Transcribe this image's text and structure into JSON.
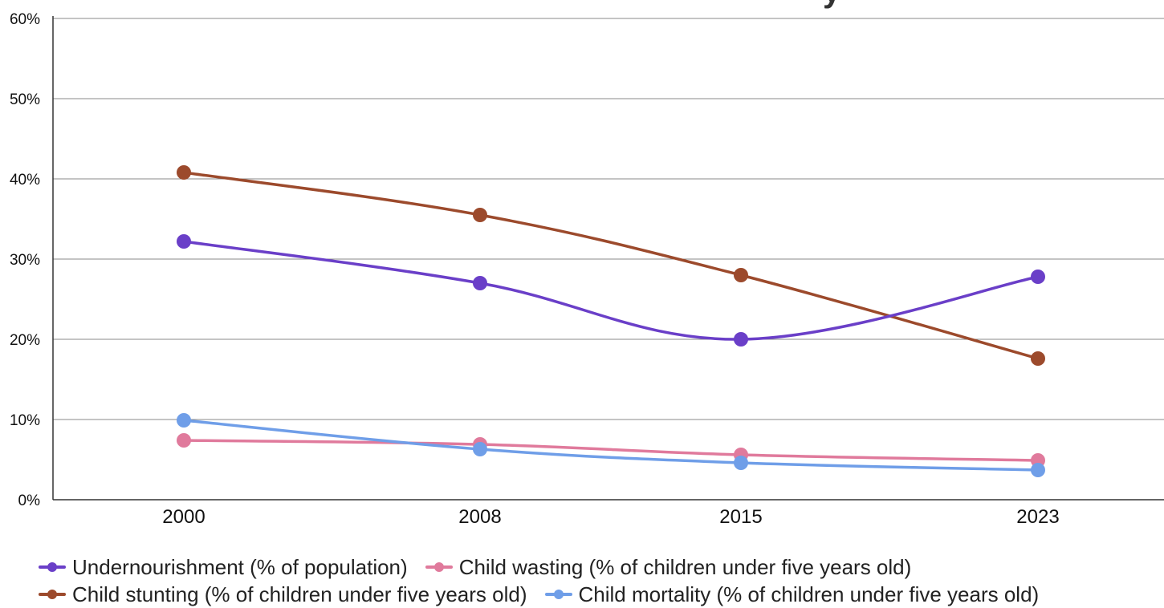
{
  "chart_data": {
    "type": "line",
    "title_fragment": "y",
    "categories": [
      "2000",
      "2008",
      "2015",
      "2023"
    ],
    "ylim": [
      0,
      60
    ],
    "y_ticks": [
      "0%",
      "10%",
      "20%",
      "30%",
      "40%",
      "50%",
      "60%"
    ],
    "grid": true,
    "legend_position": "bottom",
    "series": [
      {
        "name": "Undernourishment (% of population)",
        "color": "#6a3fc8",
        "values": [
          32.2,
          27.0,
          20.0,
          27.8
        ]
      },
      {
        "name": "Child wasting (% of children under five years old)",
        "color": "#e07a9c",
        "values": [
          7.4,
          6.9,
          5.6,
          4.9
        ]
      },
      {
        "name": "Child stunting (% of children under five years old)",
        "color": "#9c4a2c",
        "values": [
          40.8,
          35.5,
          28.0,
          17.6
        ]
      },
      {
        "name": "Child mortality (% of children under five years old)",
        "color": "#6f9ee8",
        "values": [
          9.9,
          6.3,
          4.6,
          3.7
        ]
      }
    ]
  }
}
